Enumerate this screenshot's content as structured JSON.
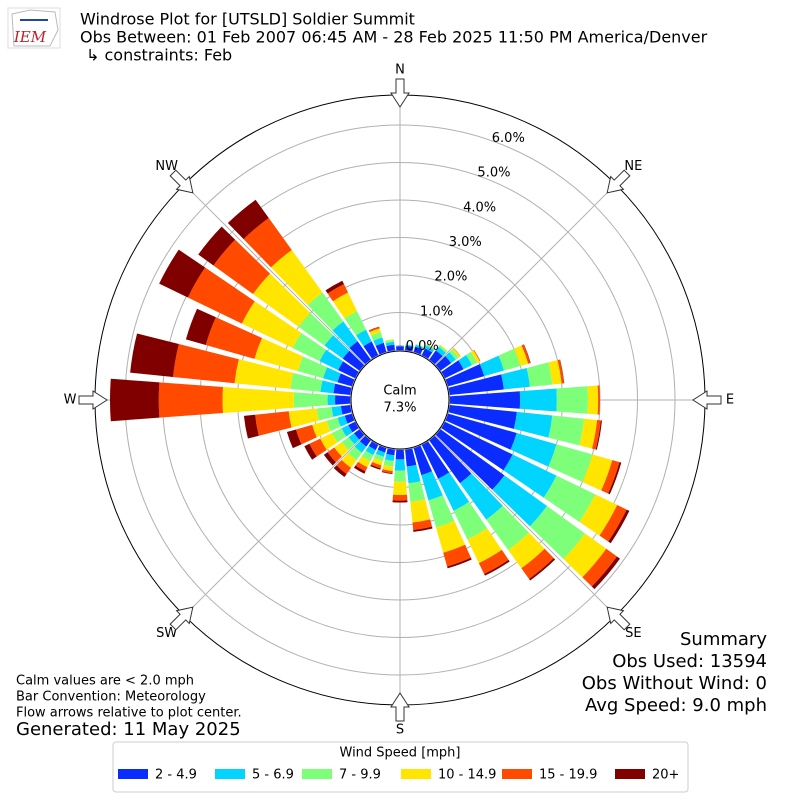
{
  "logo": "IEM",
  "chart_data": {
    "type": "windrose",
    "title": "Windrose Plot for [UTSLD] Soldier Summit",
    "subtitle": "Obs Between: 01 Feb 2007 06:45 AM - 28 Feb 2025 11:50 PM America/Denver",
    "constraints": "↳ constraints: Feb",
    "compass": [
      "N",
      "NE",
      "E",
      "SE",
      "S",
      "SW",
      "W",
      "NW"
    ],
    "x": [
      0,
      10,
      20,
      30,
      40,
      50,
      60,
      70,
      80,
      90,
      100,
      110,
      120,
      130,
      140,
      150,
      160,
      170,
      180,
      190,
      200,
      210,
      220,
      230,
      240,
      250,
      260,
      270,
      280,
      290,
      300,
      310,
      320,
      330,
      340,
      350
    ],
    "ylim": [
      0,
      6.8
    ],
    "yticks": [
      {
        "value": 0,
        "label": "0.0%"
      },
      {
        "value": 1,
        "label": "1.0%"
      },
      {
        "value": 2,
        "label": "2.0%"
      },
      {
        "value": 3,
        "label": "3.0%"
      },
      {
        "value": 4,
        "label": "4.0%"
      },
      {
        "value": 5,
        "label": "5.0%"
      },
      {
        "value": 6,
        "label": "6.0%"
      }
    ],
    "grid": true,
    "calm": {
      "label": "Calm",
      "value": 7.3,
      "value_label": "7.3%"
    },
    "legend_title": "Wind Speed [mph]",
    "series": [
      {
        "name": "2 - 4.9",
        "color": "#0a2cff",
        "values": [
          0.1,
          0.12,
          0.15,
          0.2,
          0.3,
          0.35,
          0.55,
          1.0,
          1.45,
          1.87,
          1.8,
          1.9,
          2.0,
          2.1,
          1.4,
          1.0,
          0.75,
          0.45,
          0.25,
          0.15,
          0.12,
          0.15,
          0.2,
          0.18,
          0.2,
          0.2,
          0.25,
          0.4,
          0.45,
          0.4,
          0.5,
          0.55,
          0.6,
          0.4,
          0.25,
          0.15
        ]
      },
      {
        "name": "5 - 6.9",
        "color": "#00d4ff",
        "values": [
          0.02,
          0.03,
          0.05,
          0.08,
          0.12,
          0.15,
          0.25,
          0.55,
          0.7,
          0.98,
          0.95,
          1.1,
          1.3,
          1.4,
          1.2,
          0.95,
          0.7,
          0.45,
          0.3,
          0.15,
          0.12,
          0.15,
          0.2,
          0.18,
          0.2,
          0.2,
          0.25,
          0.2,
          0.35,
          0.4,
          0.55,
          0.6,
          0.65,
          0.35,
          0.15,
          0.08
        ]
      },
      {
        "name": "7 - 9.9",
        "color": "#7dff7a",
        "values": [
          0,
          0.01,
          0.02,
          0.03,
          0.05,
          0.1,
          0.15,
          0.45,
          0.6,
          0.83,
          0.85,
          1.0,
          1.15,
          1.25,
          1.0,
          0.85,
          0.75,
          0.5,
          0.3,
          0.15,
          0.12,
          0.18,
          0.25,
          0.22,
          0.28,
          0.3,
          0.4,
          0.9,
          0.8,
          0.7,
          0.8,
          0.85,
          0.95,
          0.55,
          0.15,
          0.05
        ]
      },
      {
        "name": "10 - 14.9",
        "color": "#ffe500",
        "values": [
          0,
          0,
          0,
          0.01,
          0.02,
          0.05,
          0.08,
          0.22,
          0.25,
          0.27,
          0.35,
          0.55,
          0.65,
          0.7,
          0.6,
          0.7,
          0.7,
          0.55,
          0.35,
          0.12,
          0.12,
          0.18,
          0.25,
          0.25,
          0.35,
          0.4,
          0.75,
          1.9,
          1.5,
          1.2,
          1.5,
          1.5,
          1.4,
          0.55,
          0.1,
          0.02
        ]
      },
      {
        "name": "15 - 19.9",
        "color": "#ff4a00",
        "values": [
          0,
          0,
          0,
          0,
          0,
          0.01,
          0.02,
          0.06,
          0.06,
          0.05,
          0.1,
          0.2,
          0.28,
          0.35,
          0.35,
          0.32,
          0.38,
          0.2,
          0.15,
          0.06,
          0.08,
          0.12,
          0.2,
          0.22,
          0.32,
          0.45,
          0.9,
          1.7,
          1.65,
          1.35,
          1.6,
          1.3,
          1.05,
          0.25,
          0.04,
          0
        ]
      },
      {
        "name": "20+",
        "color": "#800000",
        "values": [
          0,
          0,
          0,
          0,
          0,
          0,
          0,
          0.01,
          0.01,
          0,
          0.03,
          0.05,
          0.08,
          0.1,
          0.05,
          0.05,
          0.05,
          0.05,
          0.05,
          0.02,
          0.04,
          0.07,
          0.1,
          0.12,
          0.15,
          0.25,
          0.3,
          1.3,
          1.15,
          0.55,
          0.85,
          0.5,
          0.6,
          0.1,
          0.01,
          0
        ]
      }
    ]
  },
  "notes": [
    "Calm values are < 2.0 mph",
    "Bar Convention: Meteorology",
    "Flow arrows relative to plot center."
  ],
  "generated": "Generated: 11 May 2025",
  "summary": [
    "Summary",
    "Obs Used: 13594",
    "Obs Without Wind: 0",
    "Avg Speed: 9.0 mph"
  ]
}
